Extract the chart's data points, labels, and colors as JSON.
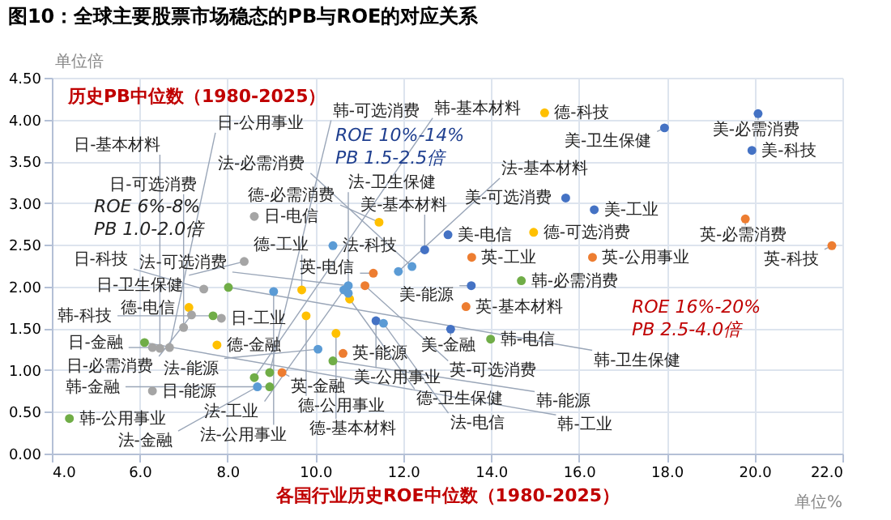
{
  "chart_data": {
    "type": "scatter",
    "title": "图10：全球主要股票市场稳态的PB与ROE的对应关系",
    "xlabel": "各国行业历史ROE中位数（1980-2025）",
    "ylabel": "历史PB中位数（1980-2025）",
    "marker": "circle",
    "grid": true,
    "xlim": [
      4,
      22
    ],
    "ylim": [
      0,
      4.5
    ],
    "xticks": [
      {
        "value": 4,
        "label": "4.0"
      },
      {
        "value": 6,
        "label": "6.0"
      },
      {
        "value": 8,
        "label": "8.0"
      },
      {
        "value": 10,
        "label": "10.0"
      },
      {
        "value": 12,
        "label": "12.0"
      },
      {
        "value": 14,
        "label": "14.0"
      },
      {
        "value": 16,
        "label": "16.0"
      },
      {
        "value": 18,
        "label": "18.0"
      },
      {
        "value": 20,
        "label": "20.0"
      },
      {
        "value": 22,
        "label": "22.0"
      }
    ],
    "yticks": [
      {
        "value": 0,
        "label": "0.00"
      },
      {
        "value": 0.5,
        "label": "0.50"
      },
      {
        "value": 1,
        "label": "1.00"
      },
      {
        "value": 1.5,
        "label": "1.50"
      },
      {
        "value": 2,
        "label": "2.00"
      },
      {
        "value": 2.5,
        "label": "2.50"
      },
      {
        "value": 3,
        "label": "3.00"
      },
      {
        "value": 3.5,
        "label": "3.50"
      },
      {
        "value": 4,
        "label": "4.00"
      },
      {
        "value": 4.5,
        "label": "4.50"
      }
    ],
    "series": [
      {
        "color": "#4472c4",
        "x": [
          20.08,
          17.95,
          19.94,
          15.7,
          16.35,
          13.02,
          12.49,
          13.55,
          13.08,
          11.38
        ],
        "values": [
          4.07,
          3.9,
          3.63,
          3.06,
          2.92,
          2.62,
          2.44,
          2.01,
          1.49,
          1.59
        ]
      },
      {
        "color": "#ed7d31",
        "x": [
          19.79,
          21.76,
          16.31,
          13.56,
          13.43,
          11.32,
          11.13,
          10.63,
          9.24
        ],
        "values": [
          2.81,
          2.49,
          2.35,
          2.35,
          1.76,
          2.16,
          2.01,
          1.2,
          0.97
        ]
      },
      {
        "color": "#ffc000",
        "x": [
          15.22,
          14.97,
          11.45,
          9.69,
          9.79,
          10.78,
          10.47,
          7.12,
          7.76
        ],
        "values": [
          4.08,
          2.65,
          2.77,
          1.96,
          1.65,
          1.85,
          1.44,
          1.75,
          1.3
        ]
      },
      {
        "color": "#5b9bd5",
        "x": [
          10.4,
          12.2,
          11.89,
          10.75,
          10.65,
          10.75,
          11.55,
          10.06,
          9.05,
          8.68
        ],
        "values": [
          2.49,
          2.24,
          2.18,
          2.01,
          1.96,
          1.92,
          1.56,
          1.25,
          1.94,
          0.8
        ]
      },
      {
        "color": "#a5a5a5",
        "x": [
          8.61,
          8.38,
          7.46,
          7.18,
          7.86,
          7.0,
          6.29,
          6.46,
          6.68,
          6.29
        ],
        "values": [
          2.84,
          2.3,
          1.97,
          1.66,
          1.62,
          1.51,
          1.27,
          1.26,
          1.27,
          0.75
        ]
      },
      {
        "color": "#70ad47",
        "x": [
          14.69,
          13.99,
          10.4,
          8.02,
          7.67,
          6.11,
          4.4,
          8.96,
          8.61,
          8.96
        ],
        "values": [
          2.07,
          1.37,
          1.11,
          1.99,
          1.65,
          1.33,
          0.42,
          0.97,
          0.91,
          0.8
        ]
      }
    ],
    "annotations": [
      {
        "text": "美-必需消费",
        "x": 20.08,
        "y": 4.07
      },
      {
        "text": "美-卫生保健",
        "x": 17.95,
        "y": 3.9
      },
      {
        "text": "美-科技",
        "x": 19.94,
        "y": 3.63
      },
      {
        "text": "美-可选消费",
        "x": 15.7,
        "y": 3.06
      },
      {
        "text": "美-工业",
        "x": 16.35,
        "y": 2.92
      },
      {
        "text": "美-电信",
        "x": 13.02,
        "y": 2.62
      },
      {
        "text": "美-基本材料",
        "x": 12.49,
        "y": 2.44
      },
      {
        "text": "美-能源",
        "x": 13.55,
        "y": 2.01
      },
      {
        "text": "美-金融",
        "x": 13.08,
        "y": 1.49
      },
      {
        "text": "美-公用事业",
        "x": 11.38,
        "y": 1.59
      },
      {
        "text": "英-必需消费",
        "x": 19.79,
        "y": 2.81
      },
      {
        "text": "英-科技",
        "x": 21.76,
        "y": 2.49
      },
      {
        "text": "英-公用事业",
        "x": 16.31,
        "y": 2.35
      },
      {
        "text": "英-工业",
        "x": 13.56,
        "y": 2.35
      },
      {
        "text": "英-基本材料",
        "x": 13.43,
        "y": 1.76
      },
      {
        "text": "英-电信",
        "x": 11.32,
        "y": 2.16
      },
      {
        "text": "英-可选消费",
        "x": 11.13,
        "y": 2.01
      },
      {
        "text": "英-能源",
        "x": 10.63,
        "y": 1.2
      },
      {
        "text": "英-金融",
        "x": 9.24,
        "y": 0.97
      },
      {
        "text": "德-科技",
        "x": 15.22,
        "y": 4.08
      },
      {
        "text": "德-可选消费",
        "x": 14.97,
        "y": 2.65
      },
      {
        "text": "德-必需消费",
        "x": 11.45,
        "y": 2.77
      },
      {
        "text": "德-工业",
        "x": 9.69,
        "y": 1.96
      },
      {
        "text": "德-公用事业",
        "x": 9.79,
        "y": 1.65
      },
      {
        "text": "德-卫生保健",
        "x": 10.78,
        "y": 1.85
      },
      {
        "text": "德-基本材料",
        "x": 10.47,
        "y": 1.44
      },
      {
        "text": "德-电信",
        "x": 7.12,
        "y": 1.75
      },
      {
        "text": "德-金融",
        "x": 7.76,
        "y": 1.3
      },
      {
        "text": "法-科技",
        "x": 10.4,
        "y": 2.49
      },
      {
        "text": "法-必需消费",
        "x": 12.2,
        "y": 2.24
      },
      {
        "text": "法-基本材料",
        "x": 11.89,
        "y": 2.18
      },
      {
        "text": "法-可选消费",
        "x": 10.75,
        "y": 2.01
      },
      {
        "text": "法-工业",
        "x": 10.65,
        "y": 1.96
      },
      {
        "text": "法-卫生保健",
        "x": 10.75,
        "y": 1.92
      },
      {
        "text": "法-电信",
        "x": 11.55,
        "y": 1.56
      },
      {
        "text": "法-能源",
        "x": 10.06,
        "y": 1.25
      },
      {
        "text": "法-公用事业",
        "x": 9.05,
        "y": 1.94
      },
      {
        "text": "法-金融",
        "x": 8.68,
        "y": 0.8
      },
      {
        "text": "日-电信",
        "x": 8.61,
        "y": 2.84
      },
      {
        "text": "日-卫生保健",
        "x": 8.38,
        "y": 2.3
      },
      {
        "text": "日-科技",
        "x": 7.46,
        "y": 1.97
      },
      {
        "text": "日-必需消费",
        "x": 7.18,
        "y": 1.66
      },
      {
        "text": "日-工业",
        "x": 7.86,
        "y": 1.62
      },
      {
        "text": "日-可选消费",
        "x": 7.0,
        "y": 1.51
      },
      {
        "text": "日-金融",
        "x": 6.29,
        "y": 1.27
      },
      {
        "text": "日-基本材料",
        "x": 6.46,
        "y": 1.26
      },
      {
        "text": "日-公用事业",
        "x": 6.68,
        "y": 1.27
      },
      {
        "text": "日-能源",
        "x": 6.29,
        "y": 0.75
      },
      {
        "text": "韩-必需消费",
        "x": 14.69,
        "y": 2.07
      },
      {
        "text": "韩-电信",
        "x": 13.99,
        "y": 1.37
      },
      {
        "text": "韩-能源",
        "x": 10.4,
        "y": 1.11
      },
      {
        "text": "韩-卫生保健",
        "x": 8.02,
        "y": 1.99
      },
      {
        "text": "韩-科技",
        "x": 7.67,
        "y": 1.65
      },
      {
        "text": "韩-工业",
        "x": 6.11,
        "y": 1.33
      },
      {
        "text": "韩-公用事业",
        "x": 4.4,
        "y": 0.42
      },
      {
        "text": "韩-可选消费",
        "x": 8.96,
        "y": 0.97
      },
      {
        "text": "韩-基本材料",
        "x": 8.61,
        "y": 0.91
      },
      {
        "text": "韩-金融",
        "x": 8.96,
        "y": 0.8
      },
      "单位倍",
      "单位%",
      "ROE  6%-8%",
      "PB  1.0-2.0倍",
      "ROE  10%-14%",
      "PB  1.5-2.5倍",
      "ROE  16%-20%",
      "PB  2.5-4.0倍"
    ]
  }
}
